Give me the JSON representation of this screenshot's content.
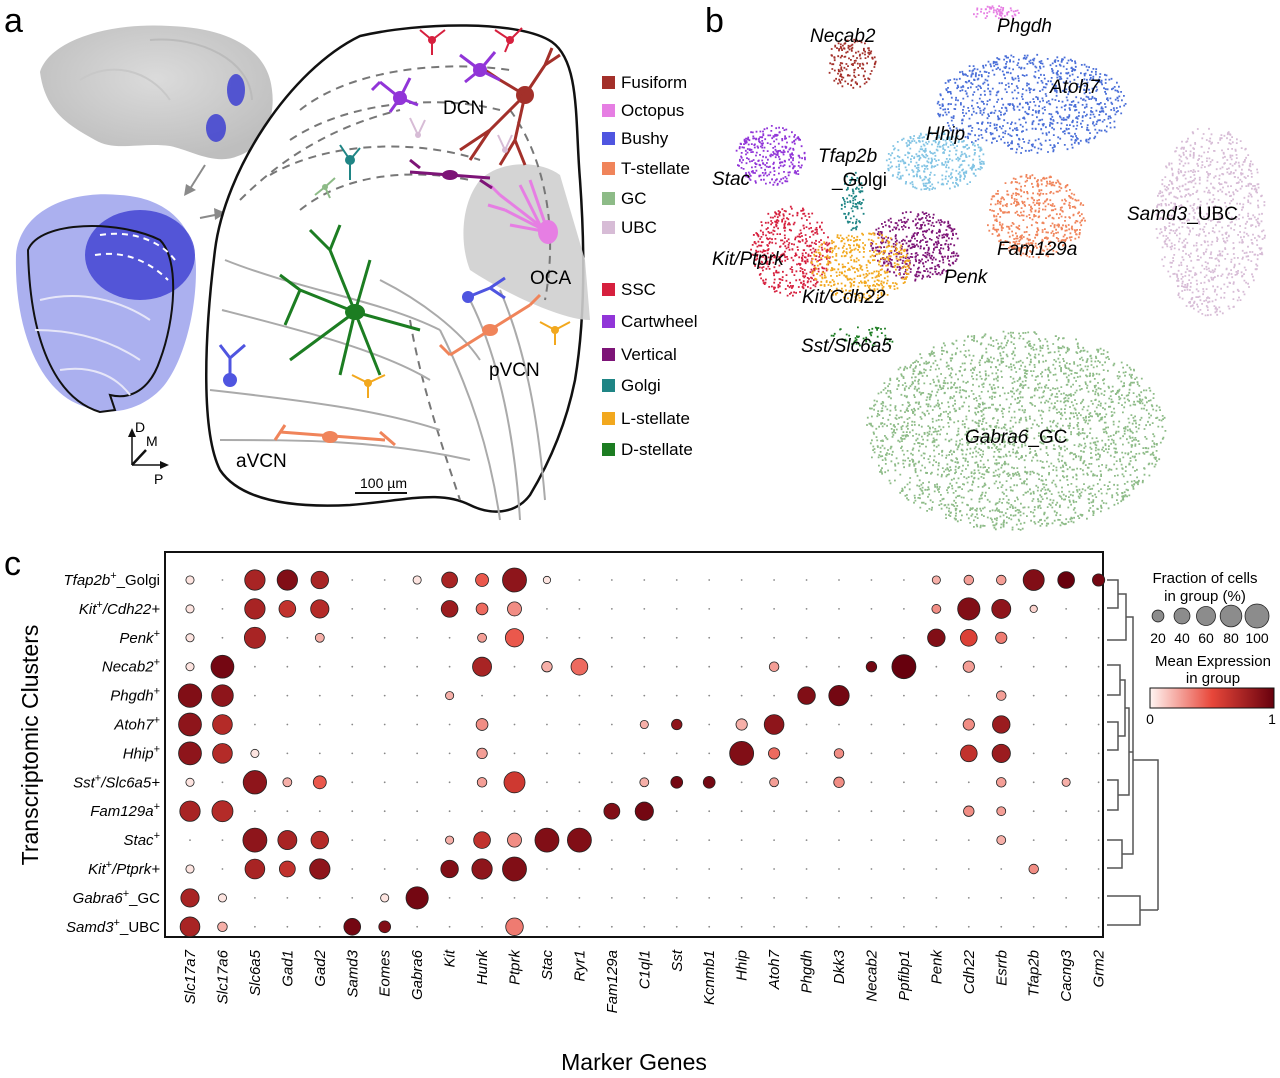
{
  "panels": {
    "a": {
      "letter": "a",
      "regions": [
        "DCN",
        "OCA",
        "pVCN",
        "aVCN"
      ],
      "scalebar": "100 µm",
      "axes": {
        "d": "D",
        "m": "M",
        "p": "P"
      },
      "legend": [
        {
          "label": "Fusiform",
          "color": "#a3302a"
        },
        {
          "label": "Octopus",
          "color": "#e67ee3"
        },
        {
          "label": "Bushy",
          "color": "#4f55e0"
        },
        {
          "label": "T-stellate",
          "color": "#f0845a"
        },
        {
          "label": "GC",
          "color": "#8dbb87"
        },
        {
          "label": "UBC",
          "color": "#d7bcd6"
        },
        {
          "label": "SSC",
          "color": "#d6203e"
        },
        {
          "label": "Cartwheel",
          "color": "#9135d8"
        },
        {
          "label": "Vertical",
          "color": "#7d1477"
        },
        {
          "label": "Golgi",
          "color": "#1f8585"
        },
        {
          "label": "L-stellate",
          "color": "#f2a81e"
        },
        {
          "label": "D-stellate",
          "color": "#1c7d22"
        }
      ]
    },
    "b": {
      "letter": "b",
      "clusters": [
        {
          "name": "Necab2",
          "suffix": "",
          "color": "#a3302a"
        },
        {
          "name": "Phgdh",
          "suffix": "",
          "color": "#e67ee3"
        },
        {
          "name": "Atoh7",
          "suffix": "",
          "color": "#4a6fd8"
        },
        {
          "name": "Hhip",
          "suffix": "",
          "color": "#82c4e4"
        },
        {
          "name": "Tfap2b",
          "suffix": "_Golgi",
          "color": "#1f8585"
        },
        {
          "name": "Stac",
          "suffix": "",
          "color": "#9135d8"
        },
        {
          "name": "Samd3",
          "suffix": "_UBC",
          "color": "#d7bcd6"
        },
        {
          "name": "Fam129a",
          "suffix": "",
          "color": "#f0845a"
        },
        {
          "name": "Kit/Ptprk",
          "suffix": "",
          "color": "#d6203e"
        },
        {
          "name": "Penk",
          "suffix": "",
          "color": "#7d1477"
        },
        {
          "name": "Kit/Cdh22",
          "suffix": "",
          "color": "#f2a81e"
        },
        {
          "name": "Sst/Slc6a5",
          "suffix": "",
          "color": "#1c7d22"
        },
        {
          "name": "Gabra6",
          "suffix": "_GC",
          "color": "#8dbb87"
        }
      ]
    },
    "c": {
      "letter": "c",
      "ylabel": "Transcriptomic Clusters",
      "xlabel": "Marker Genes",
      "size_legend": {
        "title_line1": "Fraction of cells",
        "title_line2": "in group (%)",
        "values": [
          20,
          40,
          60,
          80,
          100
        ]
      },
      "color_legend": {
        "title_line1": "Mean Expression",
        "title_line2": "in group",
        "min_label": "0",
        "max_label": "1"
      },
      "rows": [
        {
          "name": "Tfap2b",
          "sup": "+",
          "suffix": "_Golgi"
        },
        {
          "name": "Kit",
          "sup": "+",
          "suffix": "/Cdh22+"
        },
        {
          "name": "Penk",
          "sup": "+",
          "suffix": ""
        },
        {
          "name": "Necab2",
          "sup": "+",
          "suffix": ""
        },
        {
          "name": "Phgdh",
          "sup": "+",
          "suffix": ""
        },
        {
          "name": "Atoh7",
          "sup": "+",
          "suffix": ""
        },
        {
          "name": "Hhip",
          "sup": "+",
          "suffix": ""
        },
        {
          "name": "Sst",
          "sup": "+",
          "suffix": "/Slc6a5+"
        },
        {
          "name": "Fam129a",
          "sup": "+",
          "suffix": ""
        },
        {
          "name": "Stac",
          "sup": "+",
          "suffix": ""
        },
        {
          "name": "Kit",
          "sup": "+",
          "suffix": "/Ptprk+"
        },
        {
          "name": "Gabra6",
          "sup": "+",
          "suffix": "_GC"
        },
        {
          "name": "Samd3",
          "sup": "+",
          "suffix": "_UBC"
        }
      ],
      "genes": [
        "Slc17a7",
        "Slc17a6",
        "Slc6a5",
        "Gad1",
        "Gad2",
        "Samd3",
        "Eomes",
        "Gabra6",
        "Kit",
        "Hunk",
        "Ptprk",
        "Stac",
        "Ryr1",
        "Fam129a",
        "C1ql1",
        "Sst",
        "Kcnmb1",
        "Hhip",
        "Atoh7",
        "Phgdh",
        "Dkk3",
        "Necab2",
        "Ppfibp1",
        "Penk",
        "Cdh22",
        "Esrrb",
        "Tfap2b",
        "Cacng3",
        "Grm2"
      ]
    }
  },
  "chart_data": {
    "type": "scatter",
    "subtype": "dot-plot",
    "ylabel": "Transcriptomic Clusters",
    "xlabel": "Marker Genes",
    "size_encoding": "Fraction of cells in group (%)",
    "color_encoding": "Mean Expression in group",
    "color_range": [
      0,
      1
    ],
    "size_range": [
      0,
      100
    ],
    "points": [
      {
        "row": 0,
        "gene": "Slc17a7",
        "frac": 8,
        "expr": 0.05
      },
      {
        "row": 0,
        "gene": "Slc6a5",
        "frac": 70,
        "expr": 0.75
      },
      {
        "row": 0,
        "gene": "Gad1",
        "frac": 70,
        "expr": 0.9
      },
      {
        "row": 0,
        "gene": "Gad2",
        "frac": 50,
        "expr": 0.75
      },
      {
        "row": 0,
        "gene": "Gabra6",
        "frac": 8,
        "expr": 0.05
      },
      {
        "row": 0,
        "gene": "Kit",
        "frac": 40,
        "expr": 0.75
      },
      {
        "row": 0,
        "gene": "Hunk",
        "frac": 25,
        "expr": 0.45
      },
      {
        "row": 0,
        "gene": "Ptprk",
        "frac": 100,
        "expr": 0.85
      },
      {
        "row": 0,
        "gene": "Stac",
        "frac": 6,
        "expr": 0.05
      },
      {
        "row": 0,
        "gene": "Penk",
        "frac": 8,
        "expr": 0.2
      },
      {
        "row": 0,
        "gene": "Cdh22",
        "frac": 12,
        "expr": 0.25
      },
      {
        "row": 0,
        "gene": "Esrrb",
        "frac": 12,
        "expr": 0.25
      },
      {
        "row": 0,
        "gene": "Tfap2b",
        "frac": 75,
        "expr": 0.9
      },
      {
        "row": 0,
        "gene": "Cacng3",
        "frac": 45,
        "expr": 1.0
      },
      {
        "row": 0,
        "gene": "Grm2",
        "frac": 22,
        "expr": 0.95
      },
      {
        "row": 1,
        "gene": "Slc17a7",
        "frac": 8,
        "expr": 0.05
      },
      {
        "row": 1,
        "gene": "Slc6a5",
        "frac": 70,
        "expr": 0.75
      },
      {
        "row": 1,
        "gene": "Gad1",
        "frac": 45,
        "expr": 0.65
      },
      {
        "row": 1,
        "gene": "Gad2",
        "frac": 55,
        "expr": 0.7
      },
      {
        "row": 1,
        "gene": "Kit",
        "frac": 45,
        "expr": 0.8
      },
      {
        "row": 1,
        "gene": "Hunk",
        "frac": 20,
        "expr": 0.4
      },
      {
        "row": 1,
        "gene": "Ptprk",
        "frac": 30,
        "expr": 0.3
      },
      {
        "row": 1,
        "gene": "Penk",
        "frac": 10,
        "expr": 0.3
      },
      {
        "row": 1,
        "gene": "Cdh22",
        "frac": 85,
        "expr": 0.9
      },
      {
        "row": 1,
        "gene": "Esrrb",
        "frac": 60,
        "expr": 0.85
      },
      {
        "row": 1,
        "gene": "Tfap2b",
        "frac": 6,
        "expr": 0.1
      },
      {
        "row": 2,
        "gene": "Slc17a7",
        "frac": 8,
        "expr": 0.05
      },
      {
        "row": 2,
        "gene": "Slc6a5",
        "frac": 75,
        "expr": 0.75
      },
      {
        "row": 2,
        "gene": "Gad2",
        "frac": 10,
        "expr": 0.2
      },
      {
        "row": 2,
        "gene": "Hunk",
        "frac": 10,
        "expr": 0.25
      },
      {
        "row": 2,
        "gene": "Ptprk",
        "frac": 55,
        "expr": 0.45
      },
      {
        "row": 2,
        "gene": "Penk",
        "frac": 50,
        "expr": 0.9
      },
      {
        "row": 2,
        "gene": "Cdh22",
        "frac": 45,
        "expr": 0.55
      },
      {
        "row": 2,
        "gene": "Esrrb",
        "frac": 18,
        "expr": 0.35
      },
      {
        "row": 3,
        "gene": "Slc17a7",
        "frac": 8,
        "expr": 0.05
      },
      {
        "row": 3,
        "gene": "Slc17a6",
        "frac": 90,
        "expr": 0.95
      },
      {
        "row": 3,
        "gene": "Hunk",
        "frac": 60,
        "expr": 0.75
      },
      {
        "row": 3,
        "gene": "Stac",
        "frac": 15,
        "expr": 0.2
      },
      {
        "row": 3,
        "gene": "Ryr1",
        "frac": 45,
        "expr": 0.4
      },
      {
        "row": 3,
        "gene": "Atoh7",
        "frac": 12,
        "expr": 0.25
      },
      {
        "row": 3,
        "gene": "Necab2",
        "frac": 15,
        "expr": 0.95
      },
      {
        "row": 3,
        "gene": "Ppfibp1",
        "frac": 100,
        "expr": 1.0
      },
      {
        "row": 3,
        "gene": "Cdh22",
        "frac": 18,
        "expr": 0.25
      },
      {
        "row": 4,
        "gene": "Slc17a7",
        "frac": 95,
        "expr": 0.9
      },
      {
        "row": 4,
        "gene": "Slc17a6",
        "frac": 80,
        "expr": 0.85
      },
      {
        "row": 4,
        "gene": "Kit",
        "frac": 8,
        "expr": 0.2
      },
      {
        "row": 4,
        "gene": "Phgdh",
        "frac": 50,
        "expr": 0.9
      },
      {
        "row": 4,
        "gene": "Dkk3",
        "frac": 70,
        "expr": 0.95
      },
      {
        "row": 4,
        "gene": "Esrrb",
        "frac": 12,
        "expr": 0.25
      },
      {
        "row": 5,
        "gene": "Slc17a7",
        "frac": 90,
        "expr": 0.85
      },
      {
        "row": 5,
        "gene": "Slc17a6",
        "frac": 65,
        "expr": 0.7
      },
      {
        "row": 5,
        "gene": "Hunk",
        "frac": 20,
        "expr": 0.3
      },
      {
        "row": 5,
        "gene": "C1ql1",
        "frac": 8,
        "expr": 0.2
      },
      {
        "row": 5,
        "gene": "Sst",
        "frac": 15,
        "expr": 0.85
      },
      {
        "row": 5,
        "gene": "Hhip",
        "frac": 18,
        "expr": 0.2
      },
      {
        "row": 5,
        "gene": "Atoh7",
        "frac": 65,
        "expr": 0.85
      },
      {
        "row": 5,
        "gene": "Cdh22",
        "frac": 18,
        "expr": 0.3
      },
      {
        "row": 5,
        "gene": "Esrrb",
        "frac": 50,
        "expr": 0.8
      },
      {
        "row": 6,
        "gene": "Slc17a7",
        "frac": 90,
        "expr": 0.85
      },
      {
        "row": 6,
        "gene": "Slc17a6",
        "frac": 65,
        "expr": 0.7
      },
      {
        "row": 6,
        "gene": "Slc6a5",
        "frac": 8,
        "expr": 0.05
      },
      {
        "row": 6,
        "gene": "Hunk",
        "frac": 15,
        "expr": 0.25
      },
      {
        "row": 6,
        "gene": "Hhip",
        "frac": 100,
        "expr": 0.9
      },
      {
        "row": 6,
        "gene": "Atoh7",
        "frac": 18,
        "expr": 0.4
      },
      {
        "row": 6,
        "gene": "Dkk3",
        "frac": 12,
        "expr": 0.3
      },
      {
        "row": 6,
        "gene": "Cdh22",
        "frac": 45,
        "expr": 0.65
      },
      {
        "row": 6,
        "gene": "Esrrb",
        "frac": 55,
        "expr": 0.8
      },
      {
        "row": 7,
        "gene": "Slc17a7",
        "frac": 8,
        "expr": 0.05
      },
      {
        "row": 7,
        "gene": "Slc6a5",
        "frac": 95,
        "expr": 0.85
      },
      {
        "row": 7,
        "gene": "Gad1",
        "frac": 10,
        "expr": 0.2
      },
      {
        "row": 7,
        "gene": "Gad2",
        "frac": 25,
        "expr": 0.45
      },
      {
        "row": 7,
        "gene": "Hunk",
        "frac": 12,
        "expr": 0.25
      },
      {
        "row": 7,
        "gene": "Ptprk",
        "frac": 75,
        "expr": 0.6
      },
      {
        "row": 7,
        "gene": "C1ql1",
        "frac": 10,
        "expr": 0.2
      },
      {
        "row": 7,
        "gene": "Sst",
        "frac": 20,
        "expr": 0.95
      },
      {
        "row": 7,
        "gene": "Kcnmb1",
        "frac": 20,
        "expr": 0.95
      },
      {
        "row": 7,
        "gene": "Atoh7",
        "frac": 10,
        "expr": 0.25
      },
      {
        "row": 7,
        "gene": "Dkk3",
        "frac": 15,
        "expr": 0.3
      },
      {
        "row": 7,
        "gene": "Esrrb",
        "frac": 12,
        "expr": 0.25
      },
      {
        "row": 7,
        "gene": "Cacng3",
        "frac": 8,
        "expr": 0.2
      },
      {
        "row": 8,
        "gene": "Slc17a7",
        "frac": 70,
        "expr": 0.75
      },
      {
        "row": 8,
        "gene": "Slc17a6",
        "frac": 75,
        "expr": 0.7
      },
      {
        "row": 8,
        "gene": "Fam129a",
        "frac": 40,
        "expr": 0.9
      },
      {
        "row": 8,
        "gene": "C1ql1",
        "frac": 55,
        "expr": 0.95
      },
      {
        "row": 8,
        "gene": "Cdh22",
        "frac": 15,
        "expr": 0.3
      },
      {
        "row": 8,
        "gene": "Esrrb",
        "frac": 10,
        "expr": 0.25
      },
      {
        "row": 9,
        "gene": "Slc6a5",
        "frac": 100,
        "expr": 0.85
      },
      {
        "row": 9,
        "gene": "Gad1",
        "frac": 60,
        "expr": 0.75
      },
      {
        "row": 9,
        "gene": "Gad2",
        "frac": 50,
        "expr": 0.7
      },
      {
        "row": 9,
        "gene": "Kit",
        "frac": 8,
        "expr": 0.2
      },
      {
        "row": 9,
        "gene": "Hunk",
        "frac": 45,
        "expr": 0.65
      },
      {
        "row": 9,
        "gene": "Ptprk",
        "frac": 30,
        "expr": 0.3
      },
      {
        "row": 9,
        "gene": "Stac",
        "frac": 100,
        "expr": 0.9
      },
      {
        "row": 9,
        "gene": "Ryr1",
        "frac": 100,
        "expr": 0.9
      },
      {
        "row": 9,
        "gene": "Esrrb",
        "frac": 10,
        "expr": 0.2
      },
      {
        "row": 10,
        "gene": "Slc17a7",
        "frac": 8,
        "expr": 0.05
      },
      {
        "row": 10,
        "gene": "Slc6a5",
        "frac": 65,
        "expr": 0.75
      },
      {
        "row": 10,
        "gene": "Gad1",
        "frac": 40,
        "expr": 0.65
      },
      {
        "row": 10,
        "gene": "Gad2",
        "frac": 70,
        "expr": 0.85
      },
      {
        "row": 10,
        "gene": "Kit",
        "frac": 50,
        "expr": 0.9
      },
      {
        "row": 10,
        "gene": "Hunk",
        "frac": 70,
        "expr": 0.85
      },
      {
        "row": 10,
        "gene": "Ptprk",
        "frac": 100,
        "expr": 0.9
      },
      {
        "row": 10,
        "gene": "Tfap2b",
        "frac": 12,
        "expr": 0.3
      },
      {
        "row": 11,
        "gene": "Slc17a7",
        "frac": 55,
        "expr": 0.75
      },
      {
        "row": 11,
        "gene": "Slc17a6",
        "frac": 8,
        "expr": 0.05
      },
      {
        "row": 11,
        "gene": "Eomes",
        "frac": 8,
        "expr": 0.05
      },
      {
        "row": 11,
        "gene": "Gabra6",
        "frac": 85,
        "expr": 0.95
      },
      {
        "row": 12,
        "gene": "Slc17a7",
        "frac": 65,
        "expr": 0.75
      },
      {
        "row": 12,
        "gene": "Slc17a6",
        "frac": 12,
        "expr": 0.2
      },
      {
        "row": 12,
        "gene": "Samd3",
        "frac": 45,
        "expr": 0.95
      },
      {
        "row": 12,
        "gene": "Eomes",
        "frac": 20,
        "expr": 0.9
      },
      {
        "row": 12,
        "gene": "Ptprk",
        "frac": 50,
        "expr": 0.35
      }
    ]
  }
}
